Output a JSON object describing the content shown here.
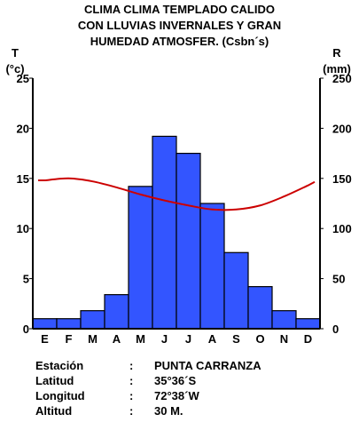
{
  "title_lines": [
    "CLIMA CLIMA TEMPLADO CALIDO",
    "CON LLUVIAS INVERNALES Y GRAN",
    "HUMEDAD ATMOSFER. (Csbn´s)"
  ],
  "left_axis": {
    "symbol": "T",
    "unit": "(°c)"
  },
  "right_axis": {
    "symbol": "R",
    "unit": "(mm)"
  },
  "chart_data": {
    "type": "bar",
    "categories": [
      "E",
      "F",
      "M",
      "A",
      "M",
      "J",
      "J",
      "A",
      "S",
      "O",
      "N",
      "D"
    ],
    "series": [
      {
        "values": [
          10,
          10,
          18,
          34,
          142,
          192,
          175,
          125,
          76,
          42,
          18,
          10
        ],
        "kind": "bar",
        "axis": "right",
        "color": "#3355ff"
      },
      {
        "values": [
          14.8,
          15.0,
          14.7,
          14.1,
          13.4,
          12.8,
          12.3,
          11.9,
          11.9,
          12.3,
          13.2,
          14.3
        ],
        "kind": "line",
        "axis": "left",
        "color": "#cc0000"
      }
    ],
    "ylim_left": [
      0,
      25
    ],
    "left_ticks": [
      0,
      5,
      10,
      15,
      20,
      25
    ],
    "ylim_right": [
      0,
      250
    ],
    "right_ticks": [
      0,
      50,
      100,
      150,
      200,
      250
    ],
    "grid": false,
    "legend": "none"
  },
  "station": [
    {
      "key": "Estación",
      "sep": ":",
      "value": "PUNTA CARRANZA"
    },
    {
      "key": "Latitud",
      "sep": ":",
      "value": "35°36´S"
    },
    {
      "key": "Longitud",
      "sep": ":",
      "value": "72°38´W"
    },
    {
      "key": "Altitud",
      "sep": ":",
      "value": "30 M."
    }
  ]
}
